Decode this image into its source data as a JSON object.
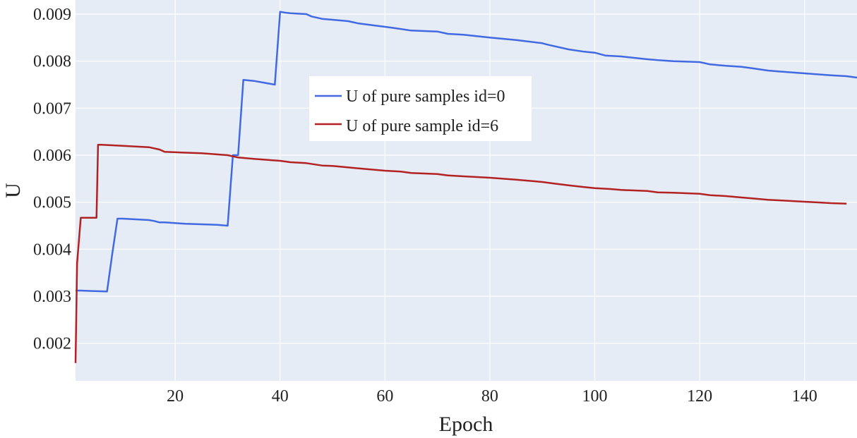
{
  "chart_data": {
    "type": "line",
    "title": "",
    "xlabel": "Epoch",
    "ylabel": "U",
    "xlim": [
      1,
      150
    ],
    "ylim": [
      0.0012,
      0.0093
    ],
    "x_ticks": [
      20,
      40,
      60,
      80,
      100,
      120,
      140
    ],
    "y_ticks": [
      0.002,
      0.003,
      0.004,
      0.005,
      0.006,
      0.007,
      0.008,
      0.009
    ],
    "x_tick_labels": [
      "20",
      "40",
      "60",
      "80",
      "100",
      "120",
      "140"
    ],
    "y_tick_labels": [
      "0.002",
      "0.003",
      "0.004",
      "0.005",
      "0.006",
      "0.007",
      "0.008",
      "0.009"
    ],
    "grid": true,
    "legend": "inside-top-center",
    "series": [
      {
        "name": "U of pure samples id=0",
        "color": "#4169e1",
        "x": [
          1,
          2,
          7,
          8,
          9,
          10,
          15,
          16,
          17,
          18,
          22,
          28,
          30,
          31,
          32,
          33,
          35,
          39,
          40,
          41,
          42,
          45,
          46,
          48,
          50,
          53,
          55,
          60,
          62,
          65,
          70,
          72,
          75,
          80,
          85,
          90,
          91,
          95,
          98,
          100,
          102,
          105,
          110,
          112,
          115,
          120,
          122,
          125,
          128,
          130,
          133,
          135,
          140,
          145,
          148,
          150
        ],
        "y": [
          0.00312,
          0.00312,
          0.0031,
          0.0039,
          0.00465,
          0.00465,
          0.00462,
          0.0046,
          0.00457,
          0.00457,
          0.00454,
          0.00452,
          0.0045,
          0.006,
          0.006,
          0.0076,
          0.00758,
          0.0075,
          0.00905,
          0.00903,
          0.00902,
          0.009,
          0.00895,
          0.0089,
          0.00888,
          0.00885,
          0.0088,
          0.00873,
          0.0087,
          0.00865,
          0.00863,
          0.00858,
          0.00856,
          0.0085,
          0.00845,
          0.00838,
          0.00835,
          0.00825,
          0.0082,
          0.00818,
          0.00812,
          0.0081,
          0.00804,
          0.00802,
          0.008,
          0.00798,
          0.00793,
          0.0079,
          0.00788,
          0.00785,
          0.0078,
          0.00778,
          0.00774,
          0.0077,
          0.00768,
          0.00765
        ]
      },
      {
        "name": "U of pure sample id=6",
        "color": "#b22222",
        "x": [
          1,
          1.3,
          2,
          5,
          5.3,
          6,
          10,
          15,
          17,
          18,
          25,
          30,
          32,
          35,
          40,
          42,
          45,
          48,
          50,
          55,
          60,
          63,
          65,
          70,
          72,
          75,
          80,
          85,
          90,
          92,
          95,
          98,
          100,
          103,
          105,
          110,
          112,
          115,
          120,
          122,
          125,
          128,
          130,
          133,
          135,
          140,
          145,
          148
        ],
        "y": [
          0.00158,
          0.0037,
          0.00467,
          0.00467,
          0.00622,
          0.00622,
          0.0062,
          0.00617,
          0.00612,
          0.00607,
          0.00604,
          0.006,
          0.00595,
          0.00592,
          0.00588,
          0.00585,
          0.00583,
          0.00578,
          0.00577,
          0.00572,
          0.00567,
          0.00565,
          0.00562,
          0.0056,
          0.00557,
          0.00555,
          0.00552,
          0.00548,
          0.00543,
          0.0054,
          0.00536,
          0.00532,
          0.0053,
          0.00528,
          0.00526,
          0.00524,
          0.00521,
          0.0052,
          0.00518,
          0.00515,
          0.00513,
          0.0051,
          0.00508,
          0.00505,
          0.00504,
          0.00501,
          0.00498,
          0.00497
        ]
      }
    ]
  }
}
